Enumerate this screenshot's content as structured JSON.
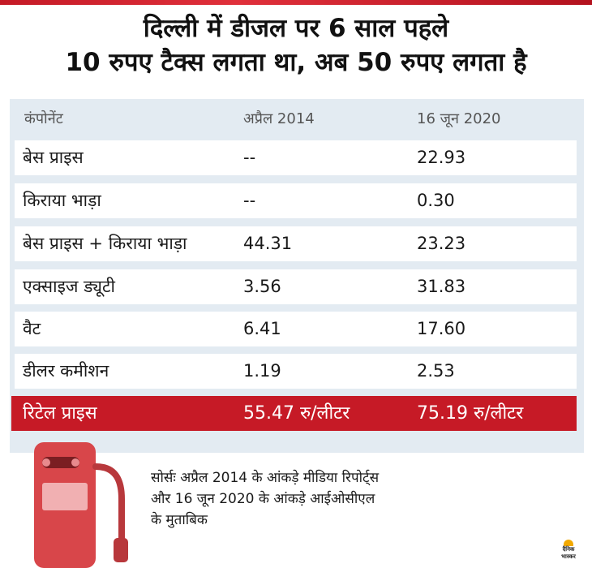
{
  "headline": {
    "line1": "दिल्ली में डीजल पर 6 साल पहले",
    "line2": "10 रुपए टैक्स लगता था, अब 50 रुपए लगता है"
  },
  "table": {
    "columns": [
      "कंपोनेंट",
      "अप्रैल 2014",
      "16 जून 2020"
    ],
    "rows": [
      [
        "बेस प्राइस",
        "--",
        "22.93"
      ],
      [
        "किराया भाड़ा",
        "--",
        "0.30"
      ],
      [
        "बेस प्राइस + किराया भाड़ा",
        "44.31",
        "23.23"
      ],
      [
        "एक्साइज ड्यूटी",
        "3.56",
        "31.83"
      ],
      [
        "वैट",
        "6.41",
        "17.60"
      ],
      [
        "डीलर कमीशन",
        "1.19",
        "2.53"
      ]
    ],
    "total": [
      "रिटेल प्राइस",
      "55.47 रु/लीटर",
      "75.19 रु/लीटर"
    ]
  },
  "source": {
    "line1": "सोर्सः अप्रैल 2014 के आंकड़े मीडिया रिपोर्ट्स",
    "line2": "और 16 जून 2020 के आंकड़े आईओसीएल",
    "line3": "के मुताबिक"
  },
  "logo": {
    "line1": "दैनिक",
    "line2": "भास्कर"
  },
  "colors": {
    "accent_red": "#c61a26",
    "panel_blue": "#e3ebf2",
    "pump_red": "#d8464a"
  },
  "icons": [
    "fuel-pump-icon",
    "dainik-bhaskar-logo"
  ]
}
